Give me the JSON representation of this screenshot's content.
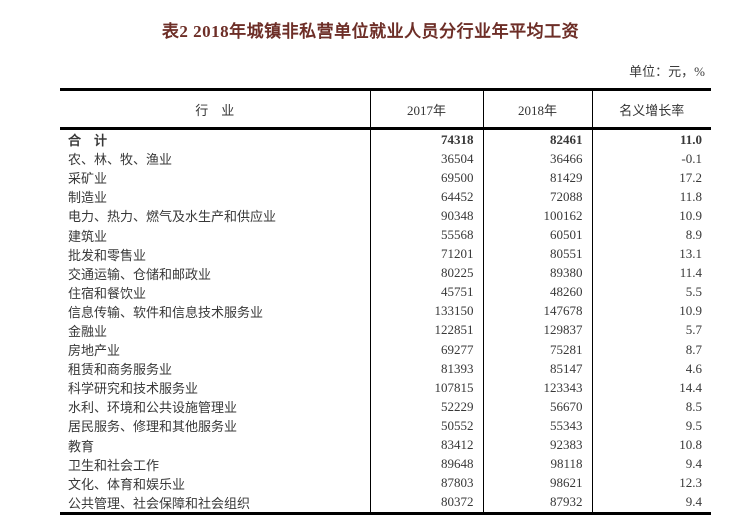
{
  "page": {
    "title": "表2  2018年城镇非私营单位就业人员分行业年平均工资",
    "unit_note": "单位：元，%"
  },
  "colors": {
    "title_text": "#6d2e27",
    "body_text": "#383838",
    "border": "#000000",
    "background": "#ffffff"
  },
  "table": {
    "columns": [
      "行　业",
      "2017年",
      "2018年",
      "名义增长率"
    ],
    "rows": [
      {
        "industry": "合　计",
        "y2017": "74318",
        "y2018": "82461",
        "growth": "11.0",
        "is_total": true
      },
      {
        "industry": "农、林、牧、渔业",
        "y2017": "36504",
        "y2018": "36466",
        "growth": "-0.1"
      },
      {
        "industry": "采矿业",
        "y2017": "69500",
        "y2018": "81429",
        "growth": "17.2"
      },
      {
        "industry": "制造业",
        "y2017": "64452",
        "y2018": "72088",
        "growth": "11.8"
      },
      {
        "industry": "电力、热力、燃气及水生产和供应业",
        "y2017": "90348",
        "y2018": "100162",
        "growth": "10.9"
      },
      {
        "industry": "建筑业",
        "y2017": "55568",
        "y2018": "60501",
        "growth": "8.9"
      },
      {
        "industry": "批发和零售业",
        "y2017": "71201",
        "y2018": "80551",
        "growth": "13.1"
      },
      {
        "industry": "交通运输、仓储和邮政业",
        "y2017": "80225",
        "y2018": "89380",
        "growth": "11.4"
      },
      {
        "industry": "住宿和餐饮业",
        "y2017": "45751",
        "y2018": "48260",
        "growth": "5.5"
      },
      {
        "industry": "信息传输、软件和信息技术服务业",
        "y2017": "133150",
        "y2018": "147678",
        "growth": "10.9"
      },
      {
        "industry": "金融业",
        "y2017": "122851",
        "y2018": "129837",
        "growth": "5.7"
      },
      {
        "industry": "房地产业",
        "y2017": "69277",
        "y2018": "75281",
        "growth": "8.7"
      },
      {
        "industry": "租赁和商务服务业",
        "y2017": "81393",
        "y2018": "85147",
        "growth": "4.6"
      },
      {
        "industry": "科学研究和技术服务业",
        "y2017": "107815",
        "y2018": "123343",
        "growth": "14.4"
      },
      {
        "industry": "水利、环境和公共设施管理业",
        "y2017": "52229",
        "y2018": "56670",
        "growth": "8.5"
      },
      {
        "industry": "居民服务、修理和其他服务业",
        "y2017": "50552",
        "y2018": "55343",
        "growth": "9.5"
      },
      {
        "industry": "教育",
        "y2017": "83412",
        "y2018": "92383",
        "growth": "10.8"
      },
      {
        "industry": "卫生和社会工作",
        "y2017": "89648",
        "y2018": "98118",
        "growth": "9.4"
      },
      {
        "industry": "文化、体育和娱乐业",
        "y2017": "87803",
        "y2018": "98621",
        "growth": "12.3"
      },
      {
        "industry": "公共管理、社会保障和社会组织",
        "y2017": "80372",
        "y2018": "87932",
        "growth": "9.4"
      }
    ]
  }
}
